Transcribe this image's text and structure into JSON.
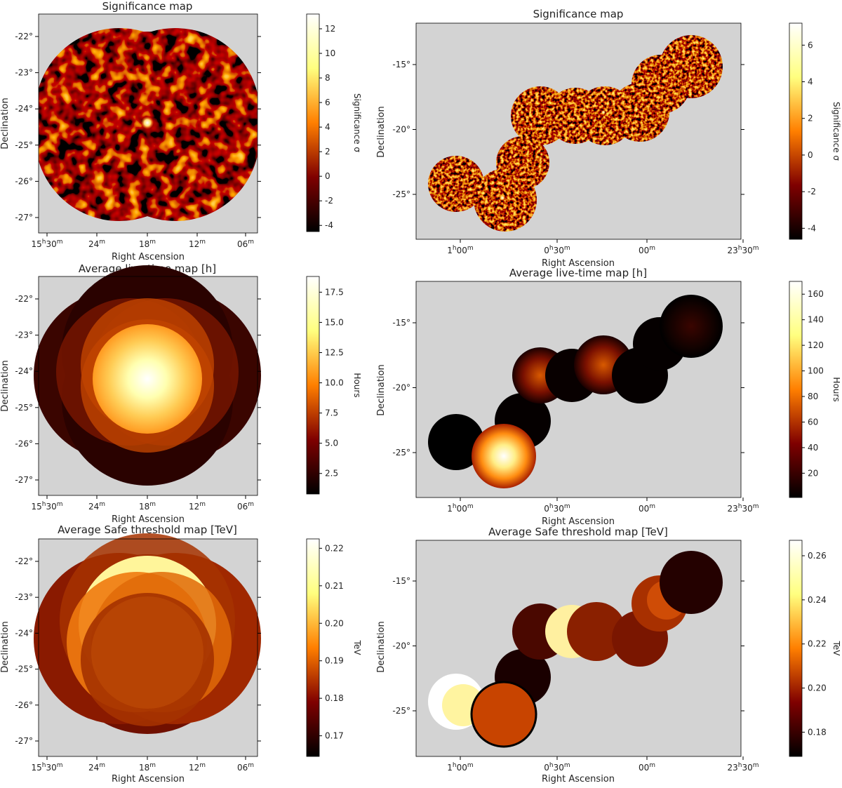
{
  "panels": [
    {
      "id": "sig-left",
      "title": "Significance map",
      "xlabel": "Right Ascension",
      "ylabel": "Declination",
      "xticks": [
        {
          "h": "15",
          "hu": "h",
          "m": "30",
          "mu": "m"
        },
        {
          "m": "24",
          "mu": "m"
        },
        {
          "m": "18",
          "mu": "m"
        },
        {
          "m": "12",
          "mu": "m"
        },
        {
          "m": "06",
          "mu": "m"
        }
      ],
      "yticks": [
        "-22°",
        "-23°",
        "-24°",
        "-25°",
        "-26°",
        "-27°"
      ],
      "colorbar": {
        "label": "Significance σ",
        "min": -4.5,
        "max": 13.2,
        "ticks": [
          "-4",
          "-2",
          "0",
          "2",
          "4",
          "6",
          "8",
          "10",
          "12"
        ],
        "tick_values": [
          -4,
          -2,
          0,
          2,
          4,
          6,
          8,
          10,
          12
        ]
      }
    },
    {
      "id": "sig-right",
      "title": "Significance map",
      "xlabel": "Right Ascension",
      "ylabel": "Declination",
      "xticks": [
        {
          "h": "1",
          "hu": "h",
          "m": "00",
          "mu": "m"
        },
        {
          "h": "0",
          "hu": "h",
          "m": "30",
          "mu": "m"
        },
        {
          "m": "00",
          "mu": "m"
        },
        {
          "h": "23",
          "hu": "h",
          "m": "30",
          "mu": "m"
        }
      ],
      "yticks": [
        "-15°",
        "-20°",
        "-25°"
      ],
      "colorbar": {
        "label": "Significance σ",
        "min": -4.6,
        "max": 7.2,
        "ticks": [
          "-4",
          "-2",
          "0",
          "2",
          "4",
          "6"
        ],
        "tick_values": [
          -4,
          -2,
          0,
          2,
          4,
          6
        ]
      }
    },
    {
      "id": "live-left",
      "title": "Average live-time map [h]",
      "xlabel": "Right Ascension",
      "ylabel": "Declination",
      "xticks": [
        {
          "h": "15",
          "hu": "h",
          "m": "30",
          "mu": "m"
        },
        {
          "m": "24",
          "mu": "m"
        },
        {
          "m": "18",
          "mu": "m"
        },
        {
          "m": "12",
          "mu": "m"
        },
        {
          "m": "06",
          "mu": "m"
        }
      ],
      "yticks": [
        "-22°",
        "-23°",
        "-24°",
        "-25°",
        "-26°",
        "-27°"
      ],
      "colorbar": {
        "label": "Hours",
        "min": 0.8,
        "max": 18.8,
        "ticks": [
          "2.5",
          "5.0",
          "7.5",
          "10.0",
          "12.5",
          "15.0",
          "17.5"
        ],
        "tick_values": [
          2.5,
          5.0,
          7.5,
          10.0,
          12.5,
          15.0,
          17.5
        ]
      }
    },
    {
      "id": "live-right",
      "title": "Average live-time map [h]",
      "xlabel": "Right Ascension",
      "ylabel": "Declination",
      "xticks": [
        {
          "h": "1",
          "hu": "h",
          "m": "00",
          "mu": "m"
        },
        {
          "h": "0",
          "hu": "h",
          "m": "30",
          "mu": "m"
        },
        {
          "m": "00",
          "mu": "m"
        },
        {
          "h": "23",
          "hu": "h",
          "m": "30",
          "mu": "m"
        }
      ],
      "yticks": [
        "-15°",
        "-20°",
        "-25°"
      ],
      "colorbar": {
        "label": "Hours",
        "min": 1,
        "max": 170,
        "ticks": [
          "20",
          "40",
          "60",
          "80",
          "100",
          "120",
          "140",
          "160"
        ],
        "tick_values": [
          20,
          40,
          60,
          80,
          100,
          120,
          140,
          160
        ]
      }
    },
    {
      "id": "thr-left",
      "title": "Average Safe threshold map [TeV]",
      "xlabel": "Right Ascension",
      "ylabel": "Declination",
      "xticks": [
        {
          "h": "15",
          "hu": "h",
          "m": "30",
          "mu": "m"
        },
        {
          "m": "24",
          "mu": "m"
        },
        {
          "m": "18",
          "mu": "m"
        },
        {
          "m": "12",
          "mu": "m"
        },
        {
          "m": "06",
          "mu": "m"
        }
      ],
      "yticks": [
        "-22°",
        "-23°",
        "-24°",
        "-25°",
        "-26°",
        "-27°"
      ],
      "colorbar": {
        "label": "TeV",
        "min": 0.1645,
        "max": 0.2225,
        "ticks": [
          "0.17",
          "0.18",
          "0.19",
          "0.20",
          "0.21",
          "0.22"
        ],
        "tick_values": [
          0.17,
          0.18,
          0.19,
          0.2,
          0.21,
          0.22
        ]
      }
    },
    {
      "id": "thr-right",
      "title": "Average Safe threshold map [TeV]",
      "xlabel": "Right Ascension",
      "ylabel": "Declination",
      "xticks": [
        {
          "h": "1",
          "hu": "h",
          "m": "00",
          "mu": "m"
        },
        {
          "h": "0",
          "hu": "h",
          "m": "30",
          "mu": "m"
        },
        {
          "m": "00",
          "mu": "m"
        },
        {
          "h": "23",
          "hu": "h",
          "m": "30",
          "mu": "m"
        }
      ],
      "yticks": [
        "-15°",
        "-20°",
        "-25°"
      ],
      "colorbar": {
        "label": "TeV",
        "min": 0.169,
        "max": 0.267,
        "ticks": [
          "0.18",
          "0.20",
          "0.22",
          "0.24",
          "0.26"
        ],
        "tick_values": [
          0.18,
          0.2,
          0.22,
          0.24,
          0.26
        ]
      }
    }
  ],
  "chart_data": [
    {
      "type": "heatmap",
      "title": "Significance map",
      "xlabel": "Right Ascension",
      "ylabel": "Declination",
      "colorbar_label": "Significance σ",
      "colormap": "afmhot",
      "range": [
        -4.5,
        13.2
      ],
      "hotspot": "bright source near 15h18m, -24.4°"
    },
    {
      "type": "heatmap",
      "title": "Significance map",
      "xlabel": "Right Ascension",
      "ylabel": "Declination",
      "colorbar_label": "Significance σ",
      "colormap": "afmhot",
      "range": [
        -4.6,
        7.2
      ]
    },
    {
      "type": "heatmap",
      "title": "Average live-time map [h]",
      "xlabel": "Right Ascension",
      "ylabel": "Declination",
      "colorbar_label": "Hours",
      "colormap": "afmhot",
      "range": [
        0.8,
        18.8
      ]
    },
    {
      "type": "heatmap",
      "title": "Average live-time map [h]",
      "xlabel": "Right Ascension",
      "ylabel": "Declination",
      "colorbar_label": "Hours",
      "colormap": "afmhot",
      "range": [
        1,
        170
      ]
    },
    {
      "type": "heatmap",
      "title": "Average Safe threshold map [TeV]",
      "xlabel": "Right Ascension",
      "ylabel": "Declination",
      "colorbar_label": "TeV",
      "colormap": "afmhot",
      "range": [
        0.1645,
        0.2225
      ]
    },
    {
      "type": "heatmap",
      "title": "Average Safe threshold map [TeV]",
      "xlabel": "Right Ascension",
      "ylabel": "Declination",
      "colorbar_label": "TeV",
      "colormap": "afmhot",
      "range": [
        0.169,
        0.267
      ]
    }
  ],
  "colors": {
    "background_gray": "#d3d3d3"
  }
}
